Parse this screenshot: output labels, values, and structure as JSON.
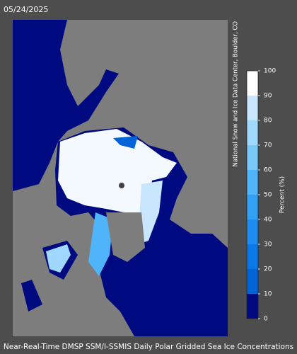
{
  "header": {
    "date": "05/24/2025",
    "credit": "National Snow and Ice Data Center, Boulder, CO"
  },
  "colorbar": {
    "label": "Percent (%)",
    "ticks": [
      0,
      10,
      20,
      30,
      40,
      50,
      60,
      70,
      80,
      90,
      100
    ],
    "colors": [
      "#000a80",
      "#0064d8",
      "#0a78e6",
      "#1e8cf0",
      "#32a0f5",
      "#50b4fa",
      "#78c8fa",
      "#a0d7fc",
      "#c8e6fd",
      "#ffffff"
    ]
  },
  "footer": {
    "caption": "Near-Real-Time DMSP SSM/I-SSMIS Daily Polar Gridded Sea Ice Concentrations"
  }
}
